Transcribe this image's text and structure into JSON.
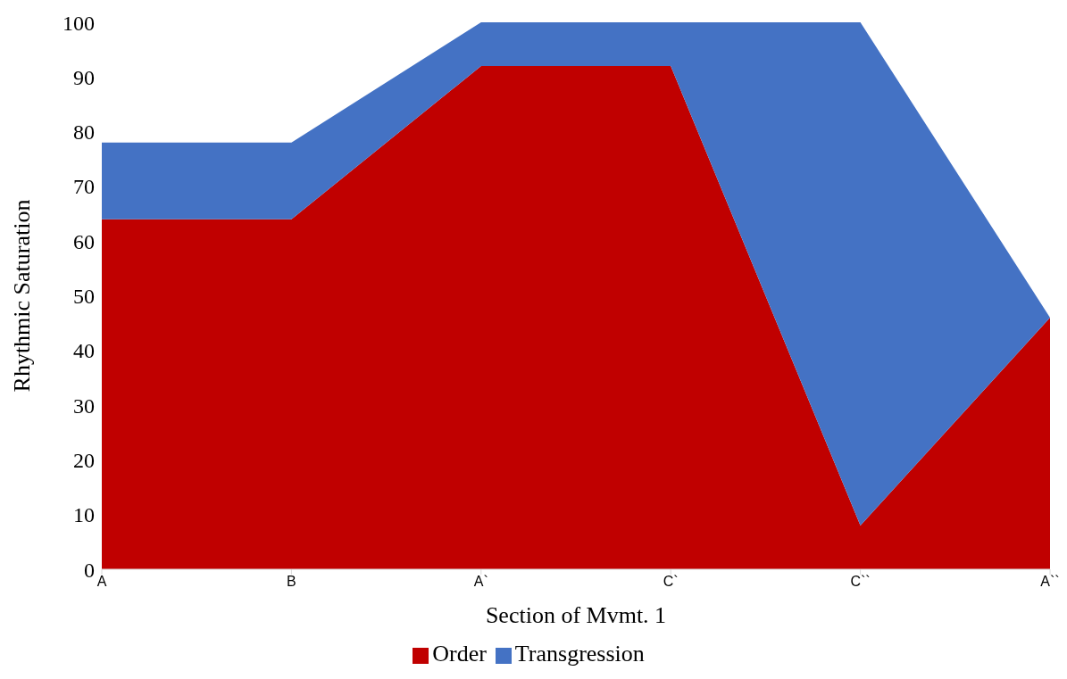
{
  "chart_data": {
    "type": "area",
    "stacked": true,
    "xlabel": "Section of Mvmt. 1",
    "ylabel": "Rhythmic Saturation",
    "categories": [
      "A",
      "B",
      "A`",
      "C`",
      "C``",
      "A``"
    ],
    "series": [
      {
        "name": "Order",
        "color": "#c00000",
        "values": [
          64,
          64,
          92,
          92,
          8,
          46
        ]
      },
      {
        "name": "Transgression",
        "color": "#4472c4",
        "values": [
          14,
          14,
          8,
          8,
          92,
          0
        ]
      }
    ],
    "ylim": [
      0,
      100
    ],
    "yticks": [
      0,
      10,
      20,
      30,
      40,
      50,
      60,
      70,
      80,
      90,
      100
    ],
    "grid": false,
    "legend": "bottom"
  }
}
